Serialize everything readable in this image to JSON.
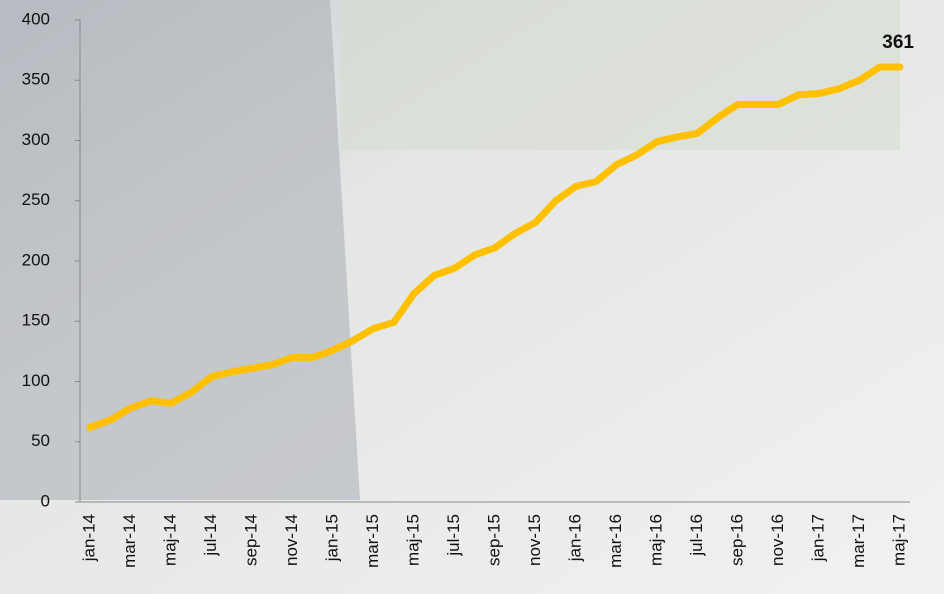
{
  "chart_data": {
    "type": "line",
    "categories": [
      "jan-14",
      null,
      "mar-14",
      null,
      "maj-14",
      null,
      "jul-14",
      null,
      "sep-14",
      null,
      "nov-14",
      null,
      "jan-15",
      null,
      "mar-15",
      null,
      "maj-15",
      null,
      "jul-15",
      null,
      "sep-15",
      null,
      "nov-15",
      null,
      "jan-16",
      null,
      "mar-16",
      null,
      "maj-16",
      null,
      "jul-16",
      null,
      "sep-16",
      null,
      "nov-16",
      null,
      "jan-17",
      null,
      "mar-17",
      null,
      "maj-17"
    ],
    "values": [
      62,
      68,
      78,
      84,
      82,
      91,
      104,
      108,
      111,
      114,
      120,
      120,
      126,
      134,
      144,
      149,
      173,
      188,
      194,
      205,
      211,
      223,
      232,
      250,
      262,
      266,
      280,
      288,
      299,
      303,
      306,
      319,
      330,
      330,
      330,
      338,
      339,
      343,
      350,
      361,
      361
    ],
    "color": "#ffc000",
    "ylim": [
      0,
      400
    ],
    "yticks": [
      0,
      50,
      100,
      150,
      200,
      250,
      300,
      350,
      400
    ]
  }
}
